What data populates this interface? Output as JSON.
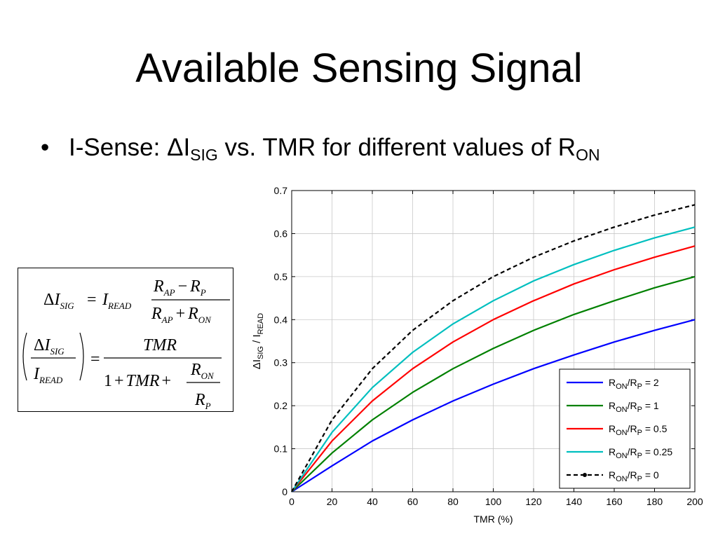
{
  "slide": {
    "title": "Available Sensing Signal",
    "bullet_prefix": "I-Sense: ΔI",
    "bullet_sub1": "SIG",
    "bullet_mid": " vs. TMR for different values of R",
    "bullet_sub2": "ON"
  },
  "formula": {
    "eq1": {
      "lhs_delta": "Δ",
      "lhs_var": "I",
      "lhs_sub": "SIG",
      "equals": "=",
      "read_var": "I",
      "read_sub": "READ",
      "num_a": "R",
      "num_a_sub": "AP",
      "num_minus": "−",
      "num_b": "R",
      "num_b_sub": "P",
      "den_a": "R",
      "den_a_sub": "AP",
      "den_plus": "+",
      "den_b": "R",
      "den_b_sub": "ON"
    },
    "eq2": {
      "num_delta": "Δ",
      "num_var": "I",
      "num_sub": "SIG",
      "den_var": "I",
      "den_sub": "READ",
      "equals": "=",
      "rhs_num": "TMR",
      "rhs_den_one": "1",
      "rhs_den_plus1": "+",
      "rhs_den_tmr": "TMR",
      "rhs_den_plus2": "+",
      "frac_num": "R",
      "frac_num_sub": "ON",
      "frac_den": "R",
      "frac_den_sub": "P"
    }
  },
  "chart_data": {
    "type": "line",
    "xlabel": "TMR (%)",
    "ylabel_parts": [
      "Δ",
      "I",
      "SIG",
      " / I",
      "READ"
    ],
    "xlim": [
      0,
      200
    ],
    "ylim": [
      0,
      0.7
    ],
    "xticks": [
      0,
      20,
      40,
      60,
      80,
      100,
      120,
      140,
      160,
      180,
      200
    ],
    "yticks": [
      0,
      0.1,
      0.2,
      0.3,
      0.4,
      0.5,
      0.6,
      0.7
    ],
    "ytick_labels": [
      "0",
      "0.1",
      "0.2",
      "0.3",
      "0.4",
      "0.5",
      "0.6",
      "0.7"
    ],
    "grid": true,
    "legend_position": "bottom-right",
    "x": [
      0,
      20,
      40,
      60,
      80,
      100,
      120,
      140,
      160,
      180,
      200
    ],
    "series": [
      {
        "name": "R_ON/R_P = 2",
        "label": [
          "R",
          "ON",
          "/R",
          "P",
          " = 2"
        ],
        "color": "#0000ff",
        "dash": "solid",
        "values": [
          0,
          0.06,
          0.118,
          0.167,
          0.211,
          0.25,
          0.286,
          0.318,
          0.348,
          0.375,
          0.4
        ]
      },
      {
        "name": "R_ON/R_P = 1",
        "label": [
          "R",
          "ON",
          "/R",
          "P",
          " = 1"
        ],
        "color": "#008000",
        "dash": "solid",
        "values": [
          0,
          0.09,
          0.167,
          0.231,
          0.286,
          0.333,
          0.375,
          0.412,
          0.444,
          0.474,
          0.5
        ]
      },
      {
        "name": "R_ON/R_P = 0.5",
        "label": [
          "R",
          "ON",
          "/R",
          "P",
          " = 0.5"
        ],
        "color": "#ff0000",
        "dash": "solid",
        "values": [
          0,
          0.118,
          0.211,
          0.286,
          0.348,
          0.4,
          0.444,
          0.483,
          0.516,
          0.545,
          0.571
        ]
      },
      {
        "name": "R_ON/R_P = 0.25",
        "label": [
          "R",
          "ON",
          "/R",
          "P",
          " = 0.25"
        ],
        "color": "#00bfbf",
        "dash": "solid",
        "values": [
          0,
          0.138,
          0.242,
          0.324,
          0.39,
          0.444,
          0.49,
          0.528,
          0.561,
          0.59,
          0.615
        ]
      },
      {
        "name": "R_ON/R_P = 0",
        "label": [
          "R",
          "ON",
          "/R",
          "P",
          " = 0"
        ],
        "color": "#000000",
        "dash": "dashed",
        "values": [
          0,
          0.167,
          0.286,
          0.375,
          0.444,
          0.5,
          0.545,
          0.583,
          0.615,
          0.643,
          0.667
        ]
      }
    ]
  }
}
